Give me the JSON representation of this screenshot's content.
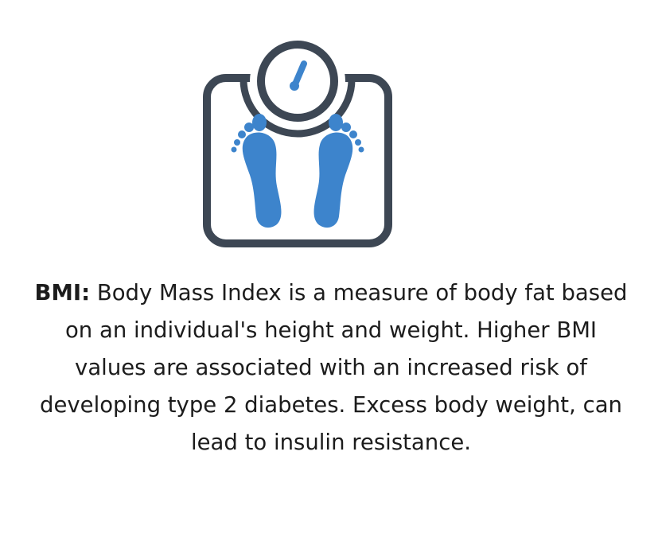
{
  "icon": {
    "name": "bathroom-scale-icon",
    "outline_color": "#3d4754",
    "accent_color": "#3d84cc"
  },
  "definition": {
    "term": "BMI:",
    "text": " Body Mass Index is a measure of body fat based on an individual's height and weight. Higher BMI values are associated with an increased risk of developing type 2 diabetes. Excess body weight, can lead to insulin resistance."
  }
}
